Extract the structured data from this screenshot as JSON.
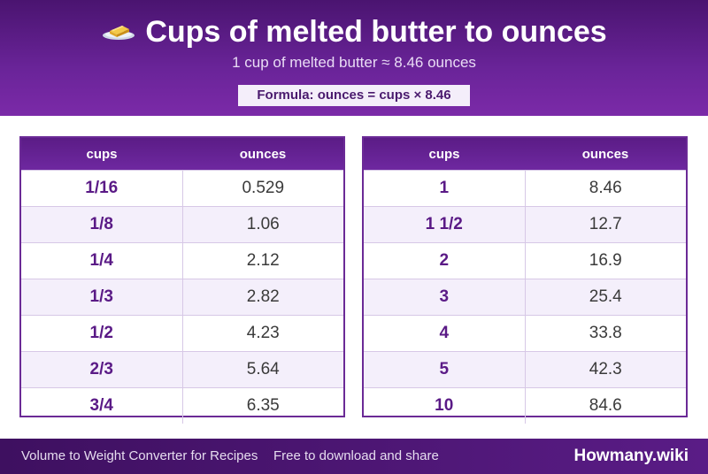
{
  "header": {
    "icon": "butter-icon",
    "title": "Cups of melted butter to ounces",
    "subtitle": "1 cup of melted butter ≈ 8.46 ounces",
    "formula": "Formula: ounces = cups × 8.46"
  },
  "tables": [
    {
      "headers": [
        "cups",
        "ounces"
      ],
      "rows": [
        [
          "1/16",
          "0.529"
        ],
        [
          "1/8",
          "1.06"
        ],
        [
          "1/4",
          "2.12"
        ],
        [
          "1/3",
          "2.82"
        ],
        [
          "1/2",
          "4.23"
        ],
        [
          "2/3",
          "5.64"
        ],
        [
          "3/4",
          "6.35"
        ]
      ]
    },
    {
      "headers": [
        "cups",
        "ounces"
      ],
      "rows": [
        [
          "1",
          "8.46"
        ],
        [
          "1 1/2",
          "12.7"
        ],
        [
          "2",
          "16.9"
        ],
        [
          "3",
          "25.4"
        ],
        [
          "4",
          "33.8"
        ],
        [
          "5",
          "42.3"
        ],
        [
          "10",
          "84.6"
        ]
      ]
    }
  ],
  "footer": {
    "left_text": "Volume to Weight Converter for Recipes",
    "middle_text": "Free to download and share",
    "brand": "Howmany.wiki"
  }
}
